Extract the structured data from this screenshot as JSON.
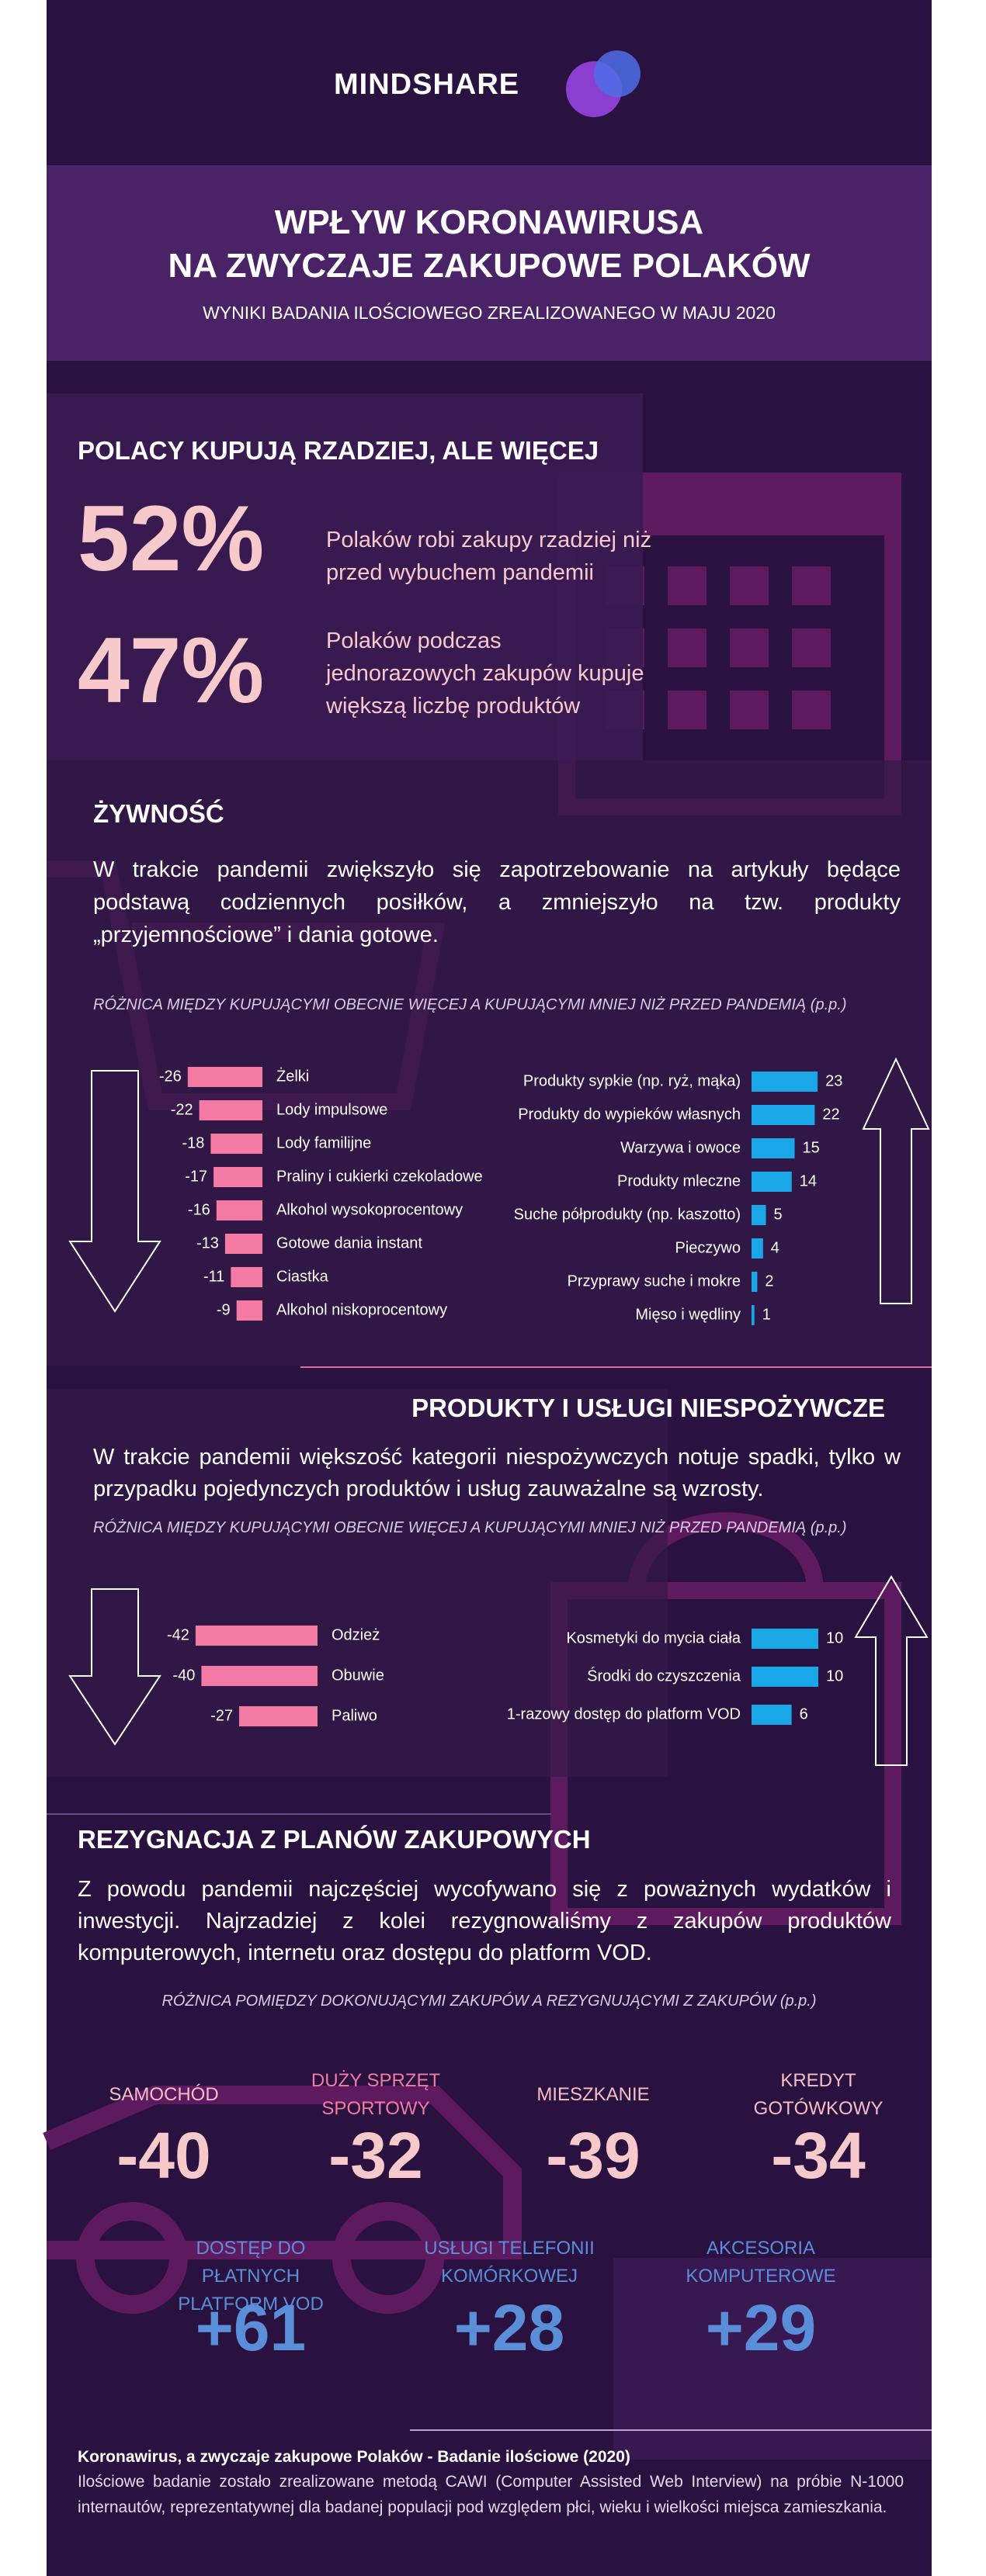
{
  "header": {
    "logo": "MINDSHARE",
    "title_line1": "WPŁYW  KORONAWIRUSA",
    "title_line2": "NA  ZWYCZAJE ZAKUPOWE  POLAKÓW",
    "subtitle": "WYNIKI BADANIA ILOŚCIOWEGO ZREALIZOWANEGO W MAJU 2020"
  },
  "stats": {
    "heading": "POLACY KUPUJĄ RZADZIEJ, ALE WIĘCEJ",
    "items": [
      {
        "value": "52%",
        "text": "Polaków  robi zakupy rzadziej niż przed wybuchem pandemii"
      },
      {
        "value": "47%",
        "text": "Polaków  podczas jednorazowych zakupów kupuje większą liczbę produktów"
      }
    ]
  },
  "food": {
    "heading": "ŻYWNOŚĆ",
    "text": "W trakcie pandemii zwiększyło się zapotrzebowanie na artykuły będące podstawą codziennych posiłków, a zmniejszyło na tzw. produkty „przyjemnościowe” i dania gotowe.",
    "caption": "RÓŻNICA MIĘDZY KUPUJĄCYMI OBECNIE WIĘCEJ A KUPUJĄCYMI MNIEJ NIŻ PRZED PANDEMIĄ (p.p.)"
  },
  "nonfood": {
    "heading": "PRODUKTY I USŁUGI NIESPOŻYWCZE",
    "text": "W trakcie pandemii większość kategorii niespożywczych notuje spadki, tylko w przypadku pojedynczych produktów i usług zauważalne są wzrosty.",
    "caption": "RÓŻNICA MIĘDZY KUPUJĄCYMI OBECNIE WIĘCEJ A KUPUJĄCYMI MNIEJ NIŻ PRZED PANDEMIĄ  (p.p.)"
  },
  "chart_data": [
    {
      "type": "bar",
      "orientation": "horizontal",
      "color": "#f27aa3",
      "categories": [
        "Żelki",
        "Lody impulsowe",
        "Lody familijne",
        "Praliny i cukierki czekoladowe",
        "Alkohol wysokoprocentowy",
        "Gotowe dania instant",
        "Ciastka",
        "Alkohol niskoprocentowy"
      ],
      "values": [
        -26,
        -22,
        -18,
        -17,
        -16,
        -13,
        -11,
        -9
      ]
    },
    {
      "type": "bar",
      "orientation": "horizontal",
      "color": "#1aa7e8",
      "categories": [
        "Produkty sypkie (np. ryż, mąka)",
        "Produkty do wypieków własnych",
        "Warzywa i owoce",
        "Produkty mleczne",
        "Suche półprodukty (np. kaszotto)",
        "Pieczywo",
        "Przyprawy suche i mokre",
        "Mięso i wędliny"
      ],
      "values": [
        23,
        22,
        15,
        14,
        5,
        4,
        2,
        1
      ]
    },
    {
      "type": "bar",
      "orientation": "horizontal",
      "color": "#f27aa3",
      "categories": [
        "Odzież",
        "Obuwie",
        "Paliwo"
      ],
      "values": [
        -42,
        -40,
        -27
      ]
    },
    {
      "type": "bar",
      "orientation": "horizontal",
      "color": "#1aa7e8",
      "categories": [
        "Kosmetyki do mycia ciała",
        "Środki do czyszczenia",
        "1-razowy dostęp do platform VOD"
      ],
      "values": [
        10,
        10,
        6
      ]
    }
  ],
  "resign": {
    "heading": "REZYGNACJA Z PLANÓW ZAKUPOWYCH",
    "text": "Z powodu pandemii najczęściej wycofywano się z poważnych wydatków i inwestycji. Najrzadziej z kolei rezygnowaliśmy z zakupów produktów komputerowych, internetu oraz dostępu do platform VOD.",
    "caption": "RÓŻNICA POMIĘDZY DOKONUJĄCYMI ZAKUPÓW A REZYGNUJĄCYMI Z ZAKUPÓW (p.p.)",
    "items": [
      {
        "label": "SAMOCHÓD",
        "value": "-40"
      },
      {
        "label": "DUŻY SPRZĘT SPORTOWY",
        "value": "-32"
      },
      {
        "label": "MIESZKANIE",
        "value": "-39"
      },
      {
        "label": "KREDYT GOTÓWKOWY",
        "value": "-34"
      },
      {
        "label": "DOSTĘP DO PŁATNYCH PLATFORM VOD",
        "value": "+61"
      },
      {
        "label": "USŁUGI TELEFONII KOMÓRKOWEJ",
        "value": "+28"
      },
      {
        "label": "AKCESORIA KOMPUTEROWE",
        "value": "+29"
      }
    ]
  },
  "footer": {
    "title": "Koronawirus, a zwyczaje zakupowe Polaków - Badanie ilościowe (2020)",
    "text": "Ilościowe badanie zostało zrealizowane metodą CAWI (Computer Assisted Web Interview) na próbie N-1000 internautów, reprezentatywnej dla badanej populacji pod względem płci, wieku i wielkości miejsca zamieszkania."
  }
}
